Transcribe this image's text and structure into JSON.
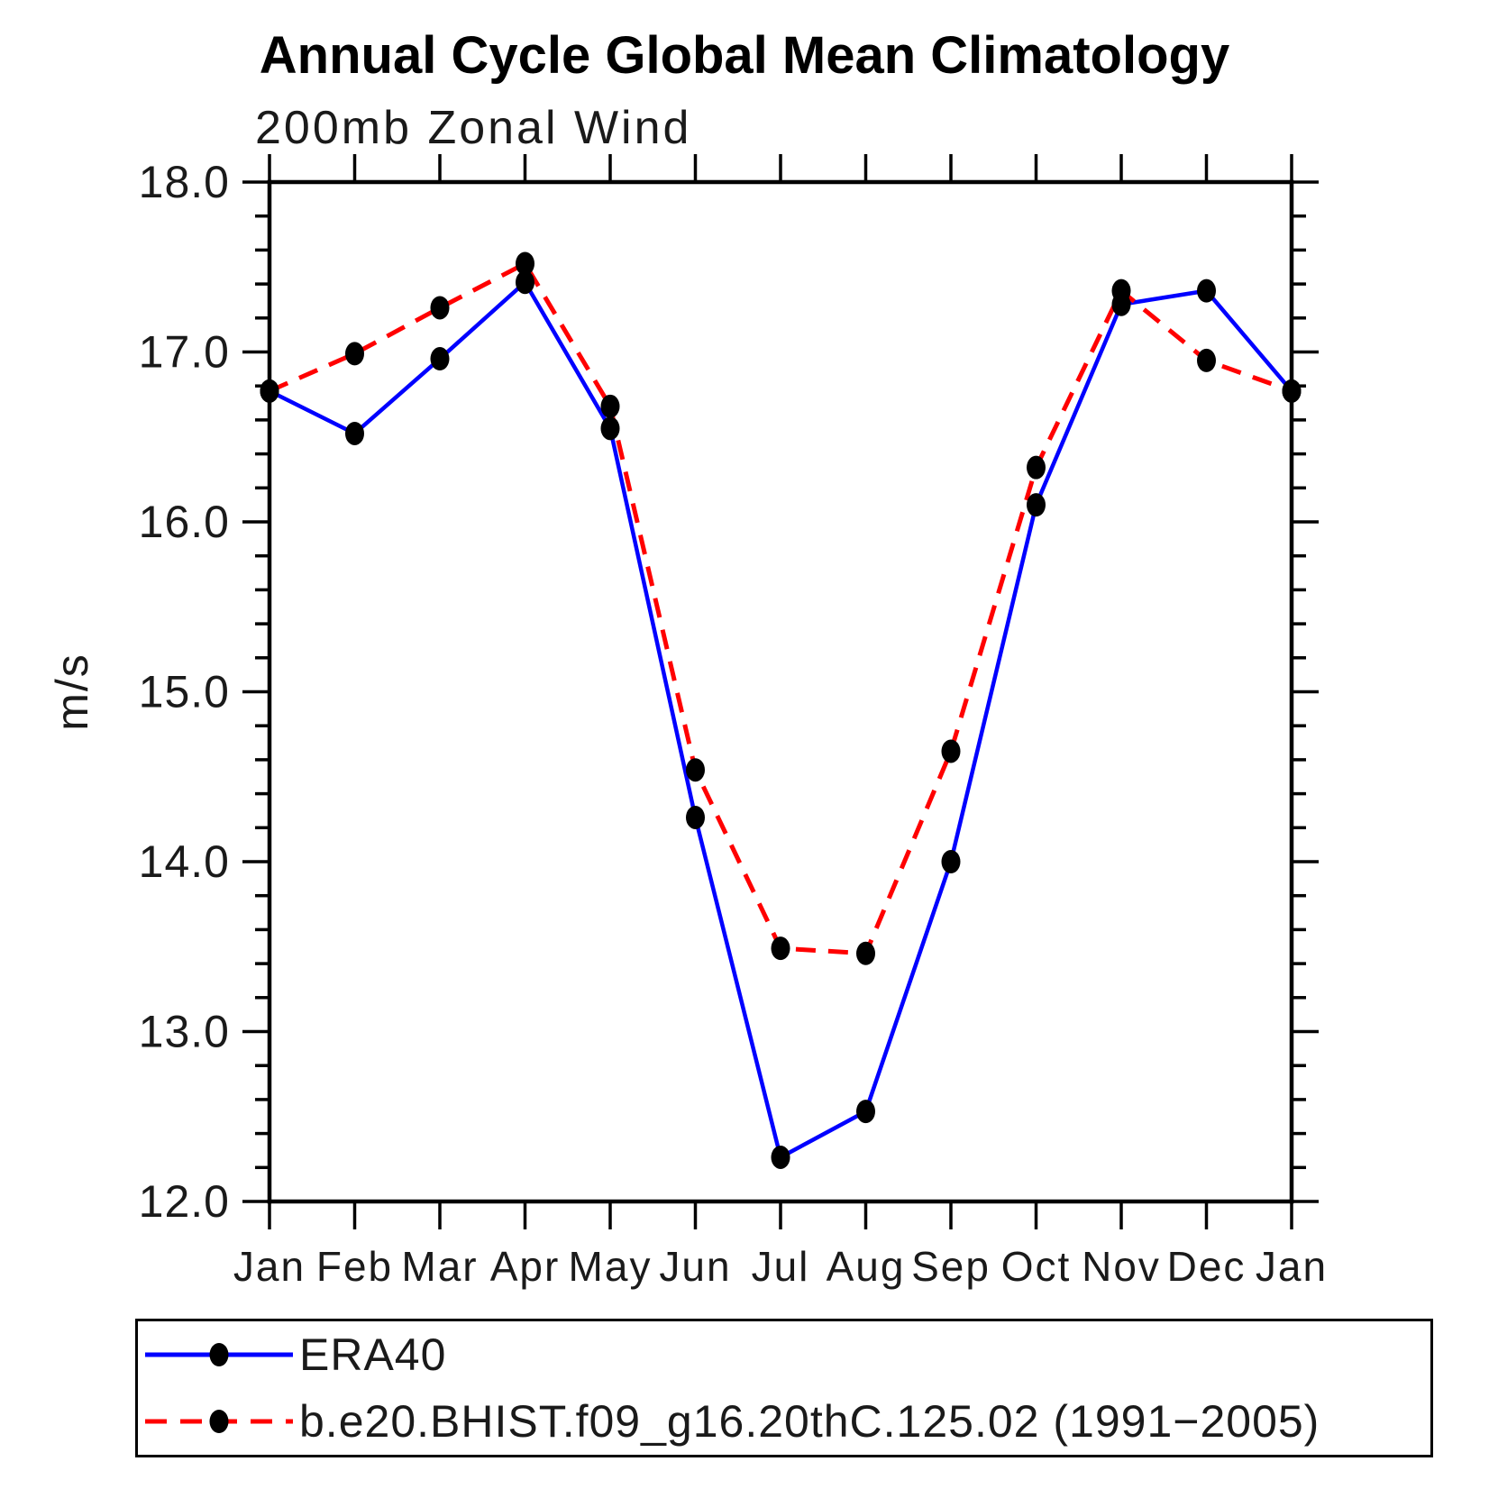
{
  "header": {
    "title": "Annual Cycle Global Mean Climatology",
    "subtitle": "200mb Zonal Wind"
  },
  "chart_data": {
    "type": "line",
    "title": "Annual Cycle Global Mean Climatology",
    "subtitle": "200mb Zonal Wind",
    "xlabel": "",
    "ylabel": "m/s",
    "x_tick_labels": [
      "Jan",
      "Feb",
      "Mar",
      "Apr",
      "May",
      "Jun",
      "Jul",
      "Aug",
      "Sep",
      "Oct",
      "Nov",
      "Dec",
      "Jan"
    ],
    "ylim": [
      12.0,
      18.0
    ],
    "y_major_tick_step": 1.0,
    "y_minor_tick_step": 0.2,
    "y_tick_labels": [
      "12.0",
      "13.0",
      "14.0",
      "15.0",
      "16.0",
      "17.0",
      "18.0"
    ],
    "grid": false,
    "legend_position": "bottom-left box",
    "axis_color": "#000000",
    "marker_shape": "filled-circle",
    "series": [
      {
        "name": "ERA40",
        "line_color": "#0000ff",
        "line_style": "solid",
        "marker_color": "#000000",
        "values": [
          16.77,
          16.52,
          16.96,
          17.41,
          16.55,
          14.26,
          12.26,
          12.53,
          14.0,
          16.1,
          17.28,
          17.36,
          16.77
        ]
      },
      {
        "name": "b.e20.BHIST.f09_g16.20thC.125.02 (1991−2005)",
        "line_color": "#ff0000",
        "line_style": "dashed",
        "marker_color": "#000000",
        "values": [
          16.77,
          16.99,
          17.26,
          17.52,
          16.68,
          14.54,
          13.49,
          13.46,
          14.65,
          16.32,
          17.36,
          16.95,
          16.77
        ]
      }
    ]
  }
}
